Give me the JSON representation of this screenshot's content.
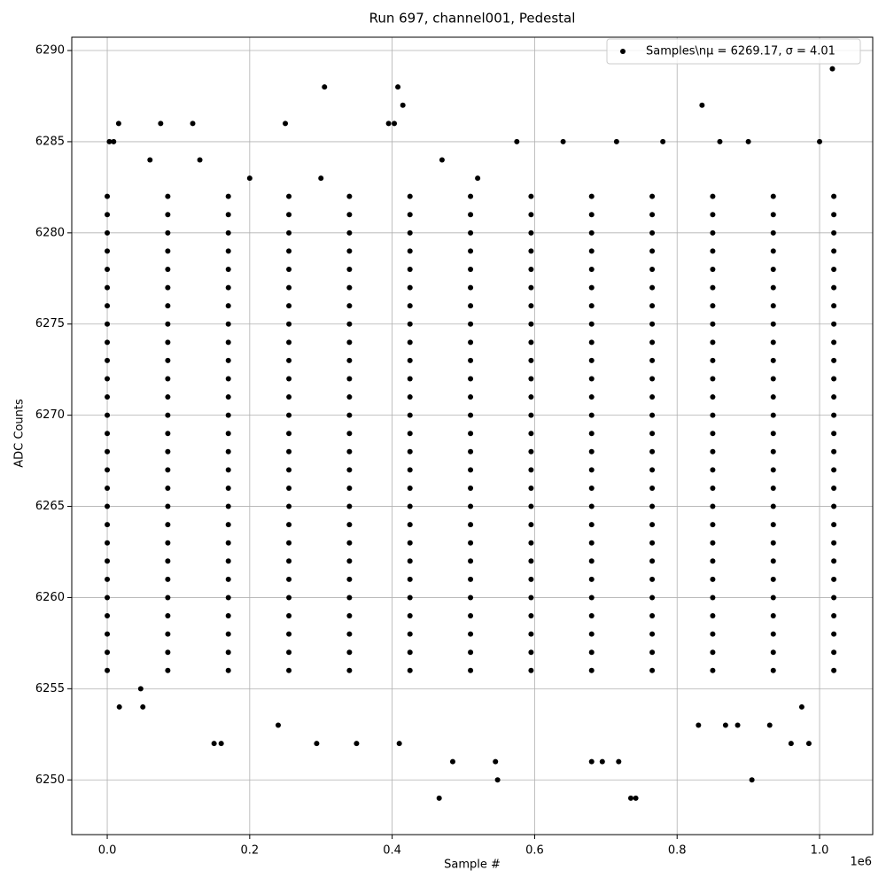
{
  "chart_data": {
    "type": "scatter",
    "title": "Run 697, channel001, Pedestal",
    "xlabel": "Sample #",
    "ylabel": "ADC Counts",
    "x_offset_label": "1e6",
    "xlim": [
      -49800,
      1074600
    ],
    "ylim": [
      6247.0,
      6290.73
    ],
    "xticks": [
      {
        "value": 0,
        "label": "0.0"
      },
      {
        "value": 200000,
        "label": "0.2"
      },
      {
        "value": 400000,
        "label": "0.4"
      },
      {
        "value": 600000,
        "label": "0.6"
      },
      {
        "value": 800000,
        "label": "0.8"
      },
      {
        "value": 1000000,
        "label": "1.0"
      }
    ],
    "yticks": [
      6250,
      6255,
      6260,
      6265,
      6270,
      6275,
      6280,
      6285,
      6290
    ],
    "grid": true,
    "legend": "upper right",
    "series": [
      {
        "name": "Samples\\nμ = 6269.17, σ = 4.01",
        "color": "#000000",
        "x": [
          0,
          85000,
          170000,
          255000,
          340000,
          425000,
          510000,
          595000,
          680000,
          765000,
          850000,
          935000,
          1020000,
          0,
          85000,
          170000,
          255000,
          340000,
          425000,
          510000,
          595000,
          680000,
          765000,
          850000,
          935000,
          1020000,
          0,
          85000,
          170000,
          255000,
          340000,
          425000,
          510000,
          595000,
          680000,
          765000,
          850000,
          935000,
          1020000,
          0,
          85000,
          170000,
          255000,
          340000,
          425000,
          510000,
          595000,
          680000,
          765000,
          850000,
          935000,
          1020000,
          0,
          85000,
          170000,
          255000,
          340000,
          425000,
          510000,
          595000,
          680000,
          765000,
          850000,
          935000,
          1020000,
          0,
          85000,
          170000,
          255000,
          340000,
          425000,
          510000,
          595000,
          680000,
          765000,
          850000,
          935000,
          1020000,
          0,
          85000,
          170000,
          255000,
          340000,
          425000,
          510000,
          595000,
          680000,
          765000,
          850000,
          935000,
          1020000,
          0,
          85000,
          170000,
          255000,
          340000,
          425000,
          510000,
          595000,
          680000,
          765000,
          850000,
          935000,
          1020000,
          0,
          85000,
          170000,
          255000,
          340000,
          425000,
          510000,
          595000,
          680000,
          765000,
          850000,
          935000,
          1020000,
          0,
          85000,
          170000,
          255000,
          340000,
          425000,
          510000,
          595000,
          680000,
          765000,
          850000,
          935000,
          1020000,
          0,
          85000,
          170000,
          255000,
          340000,
          425000,
          510000,
          595000,
          680000,
          765000,
          850000,
          935000,
          1020000,
          0,
          85000,
          170000,
          255000,
          340000,
          425000,
          510000,
          595000,
          680000,
          765000,
          850000,
          935000,
          1020000,
          0,
          85000,
          170000,
          255000,
          340000,
          425000,
          510000,
          595000,
          680000,
          765000,
          850000,
          935000,
          1020000,
          0,
          85000,
          170000,
          255000,
          340000,
          425000,
          510000,
          595000,
          680000,
          765000,
          850000,
          935000,
          1020000,
          0,
          85000,
          170000,
          255000,
          340000,
          425000,
          510000,
          595000,
          680000,
          765000,
          850000,
          935000,
          1020000,
          0,
          85000,
          170000,
          255000,
          340000,
          425000,
          510000,
          595000,
          680000,
          765000,
          850000,
          935000,
          1020000,
          0,
          85000,
          170000,
          255000,
          340000,
          425000,
          510000,
          595000,
          680000,
          765000,
          850000,
          935000,
          1020000,
          0,
          85000,
          170000,
          255000,
          340000,
          425000,
          510000,
          595000,
          680000,
          765000,
          850000,
          935000,
          1020000,
          0,
          85000,
          170000,
          255000,
          340000,
          425000,
          510000,
          595000,
          680000,
          765000,
          850000,
          935000,
          1020000,
          0,
          85000,
          170000,
          255000,
          340000,
          425000,
          510000,
          595000,
          680000,
          765000,
          850000,
          935000,
          1020000,
          0,
          85000,
          170000,
          255000,
          340000,
          425000,
          510000,
          595000,
          680000,
          765000,
          850000,
          935000,
          1020000,
          0,
          85000,
          170000,
          255000,
          340000,
          425000,
          510000,
          595000,
          680000,
          765000,
          850000,
          935000,
          1020000,
          0,
          85000,
          170000,
          255000,
          340000,
          425000,
          510000,
          595000,
          680000,
          765000,
          850000,
          935000,
          1020000,
          0,
          85000,
          170000,
          255000,
          340000,
          425000,
          510000,
          595000,
          680000,
          765000,
          850000,
          935000,
          1020000,
          0,
          85000,
          170000,
          255000,
          340000,
          425000,
          510000,
          595000,
          680000,
          765000,
          850000,
          935000,
          1020000,
          0,
          85000,
          170000,
          255000,
          340000,
          425000,
          510000,
          595000,
          680000,
          765000,
          850000,
          935000,
          1020000,
          0,
          85000,
          170000,
          255000,
          340000,
          425000,
          510000,
          595000,
          680000,
          765000,
          850000,
          935000,
          1020000,
          3000,
          9000,
          16000,
          75000,
          120000,
          250000,
          305000,
          395000,
          403000,
          408000,
          415000,
          835000,
          1018000,
          548000,
          905000,
          466000,
          735000,
          742000,
          17000,
          47000,
          50000,
          150000,
          160000,
          294000,
          485000,
          545000,
          680000,
          695000,
          718000,
          350000,
          410000,
          960000,
          985000,
          868000,
          930000,
          240000,
          830000,
          60000,
          640000,
          575000,
          715000,
          780000,
          860000,
          900000,
          1000000,
          200000,
          520000,
          300000,
          130000,
          470000,
          885000,
          975000
        ],
        "values": [
          6282,
          6282,
          6282,
          6282,
          6282,
          6282,
          6282,
          6282,
          6282,
          6282,
          6282,
          6282,
          6282,
          6281,
          6281,
          6281,
          6281,
          6281,
          6281,
          6281,
          6281,
          6281,
          6281,
          6281,
          6281,
          6281,
          6280,
          6280,
          6280,
          6280,
          6280,
          6280,
          6280,
          6280,
          6280,
          6280,
          6280,
          6280,
          6280,
          6279,
          6279,
          6279,
          6279,
          6279,
          6279,
          6279,
          6279,
          6279,
          6279,
          6279,
          6279,
          6279,
          6278,
          6278,
          6278,
          6278,
          6278,
          6278,
          6278,
          6278,
          6278,
          6278,
          6278,
          6278,
          6278,
          6277,
          6277,
          6277,
          6277,
          6277,
          6277,
          6277,
          6277,
          6277,
          6277,
          6277,
          6277,
          6277,
          6276,
          6276,
          6276,
          6276,
          6276,
          6276,
          6276,
          6276,
          6276,
          6276,
          6276,
          6276,
          6276,
          6275,
          6275,
          6275,
          6275,
          6275,
          6275,
          6275,
          6275,
          6275,
          6275,
          6275,
          6275,
          6275,
          6274,
          6274,
          6274,
          6274,
          6274,
          6274,
          6274,
          6274,
          6274,
          6274,
          6274,
          6274,
          6274,
          6273,
          6273,
          6273,
          6273,
          6273,
          6273,
          6273,
          6273,
          6273,
          6273,
          6273,
          6273,
          6273,
          6272,
          6272,
          6272,
          6272,
          6272,
          6272,
          6272,
          6272,
          6272,
          6272,
          6272,
          6272,
          6272,
          6271,
          6271,
          6271,
          6271,
          6271,
          6271,
          6271,
          6271,
          6271,
          6271,
          6271,
          6271,
          6271,
          6270,
          6270,
          6270,
          6270,
          6270,
          6270,
          6270,
          6270,
          6270,
          6270,
          6270,
          6270,
          6270,
          6269,
          6269,
          6269,
          6269,
          6269,
          6269,
          6269,
          6269,
          6269,
          6269,
          6269,
          6269,
          6269,
          6268,
          6268,
          6268,
          6268,
          6268,
          6268,
          6268,
          6268,
          6268,
          6268,
          6268,
          6268,
          6268,
          6267,
          6267,
          6267,
          6267,
          6267,
          6267,
          6267,
          6267,
          6267,
          6267,
          6267,
          6267,
          6267,
          6266,
          6266,
          6266,
          6266,
          6266,
          6266,
          6266,
          6266,
          6266,
          6266,
          6266,
          6266,
          6266,
          6265,
          6265,
          6265,
          6265,
          6265,
          6265,
          6265,
          6265,
          6265,
          6265,
          6265,
          6265,
          6265,
          6264,
          6264,
          6264,
          6264,
          6264,
          6264,
          6264,
          6264,
          6264,
          6264,
          6264,
          6264,
          6264,
          6263,
          6263,
          6263,
          6263,
          6263,
          6263,
          6263,
          6263,
          6263,
          6263,
          6263,
          6263,
          6263,
          6262,
          6262,
          6262,
          6262,
          6262,
          6262,
          6262,
          6262,
          6262,
          6262,
          6262,
          6262,
          6262,
          6261,
          6261,
          6261,
          6261,
          6261,
          6261,
          6261,
          6261,
          6261,
          6261,
          6261,
          6261,
          6261,
          6260,
          6260,
          6260,
          6260,
          6260,
          6260,
          6260,
          6260,
          6260,
          6260,
          6260,
          6260,
          6260,
          6259,
          6259,
          6259,
          6259,
          6259,
          6259,
          6259,
          6259,
          6259,
          6259,
          6259,
          6259,
          6259,
          6258,
          6258,
          6258,
          6258,
          6258,
          6258,
          6258,
          6258,
          6258,
          6258,
          6258,
          6258,
          6258,
          6257,
          6257,
          6257,
          6257,
          6257,
          6257,
          6257,
          6257,
          6257,
          6257,
          6257,
          6257,
          6257,
          6256,
          6256,
          6256,
          6256,
          6256,
          6256,
          6256,
          6256,
          6256,
          6256,
          6256,
          6256,
          6256,
          6285,
          6285,
          6286,
          6286,
          6286,
          6286,
          6288,
          6286,
          6286,
          6288,
          6287,
          6287,
          6289,
          6250,
          6250,
          6249,
          6249,
          6249,
          6254,
          6255,
          6254,
          6252,
          6252,
          6252,
          6251,
          6251,
          6251,
          6251,
          6251,
          6252,
          6252,
          6252,
          6252,
          6253,
          6253,
          6253,
          6253,
          6284,
          6285,
          6285,
          6285,
          6285,
          6285,
          6285,
          6285,
          6283,
          6283,
          6283,
          6284,
          6284,
          6253,
          6254
        ]
      }
    ]
  }
}
